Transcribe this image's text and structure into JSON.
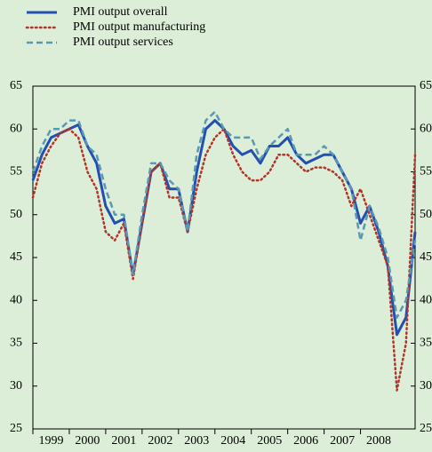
{
  "chart_data": {
    "type": "line",
    "x": [
      1999.0,
      1999.25,
      1999.5,
      1999.75,
      2000.0,
      2000.25,
      2000.5,
      2000.75,
      2001.0,
      2001.25,
      2001.5,
      2001.75,
      2002.0,
      2002.25,
      2002.5,
      2002.75,
      2003.0,
      2003.25,
      2003.5,
      2003.75,
      2004.0,
      2004.25,
      2004.5,
      2004.75,
      2005.0,
      2005.25,
      2005.5,
      2005.75,
      2006.0,
      2006.25,
      2006.5,
      2006.75,
      2007.0,
      2007.25,
      2007.5,
      2007.75,
      2008.0,
      2008.25,
      2008.5,
      2008.75,
      2009.0,
      2009.25,
      2009.5
    ],
    "series": [
      {
        "name": "PMI output overall",
        "color": "#2350b0",
        "style": "solid",
        "values": [
          54,
          57,
          59,
          59.5,
          60,
          60.5,
          58,
          56,
          51,
          49,
          49.5,
          43,
          49,
          55,
          56,
          53,
          53,
          48,
          55,
          60,
          61,
          60,
          58,
          57,
          57.5,
          56,
          58,
          58,
          59,
          57,
          56,
          56.5,
          57,
          57,
          55,
          53,
          49,
          51,
          48,
          44,
          36,
          38,
          48
        ]
      },
      {
        "name": "PMI output manufacturing",
        "color": "#b2352a",
        "style": "dotted",
        "values": [
          52,
          56,
          58,
          59.5,
          60,
          59,
          55,
          53,
          48,
          47,
          49,
          42.5,
          49,
          55,
          56,
          52,
          52,
          48,
          53,
          57,
          59,
          60,
          57,
          55,
          54,
          54,
          55,
          57,
          57,
          56,
          55,
          55.5,
          55.5,
          55,
          54,
          51,
          53,
          50,
          47,
          44,
          29.5,
          35,
          57
        ]
      },
      {
        "name": "PMI output services",
        "color": "#5b98b2",
        "style": "dashed",
        "values": [
          55,
          58,
          60,
          60,
          61,
          61,
          58,
          57,
          53,
          50,
          50,
          43,
          50,
          56,
          56,
          54,
          53,
          48,
          57,
          61,
          62,
          60,
          59,
          59,
          59,
          56.5,
          58,
          59,
          60,
          57,
          57,
          57,
          58,
          57,
          55,
          53,
          47,
          51,
          48.5,
          45,
          38,
          40,
          47
        ]
      }
    ],
    "xlim": [
      1999,
      2009.5
    ],
    "xticks": [
      1999,
      2000,
      2001,
      2002,
      2003,
      2004,
      2005,
      2006,
      2007,
      2008
    ],
    "ylim": [
      25,
      65
    ],
    "yticks": [
      25,
      30,
      35,
      40,
      45,
      50,
      55,
      60,
      65
    ],
    "grid": false
  }
}
